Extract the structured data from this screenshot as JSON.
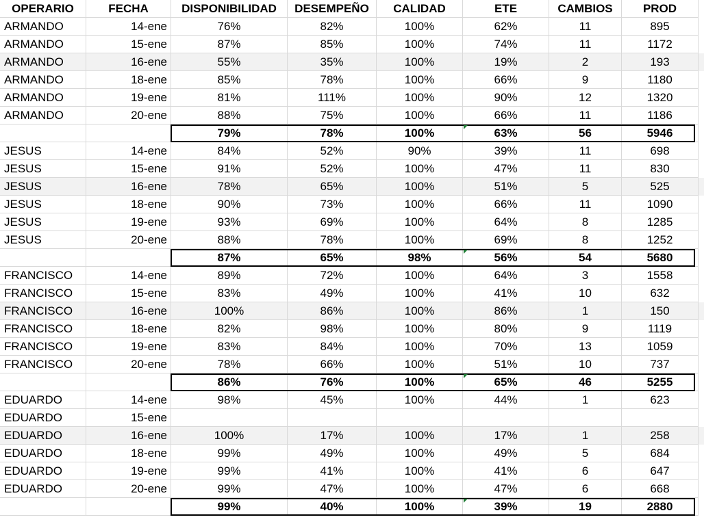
{
  "columns": [
    "OPERARIO",
    "FECHA",
    "DISPONIBILIDAD",
    "DESEMPEÑO",
    "CALIDAD",
    "ETE",
    "CAMBIOS",
    "PROD"
  ],
  "rows": [
    {
      "type": "data",
      "cells": [
        "ARMANDO",
        "14-ene",
        "76%",
        "82%",
        "100%",
        "62%",
        "11",
        "895"
      ]
    },
    {
      "type": "data",
      "cells": [
        "ARMANDO",
        "15-ene",
        "87%",
        "85%",
        "100%",
        "74%",
        "11",
        "1172"
      ]
    },
    {
      "type": "data",
      "shaded": true,
      "cells": [
        "ARMANDO",
        "16-ene",
        "55%",
        "35%",
        "100%",
        "19%",
        "2",
        "193"
      ]
    },
    {
      "type": "data",
      "cells": [
        "ARMANDO",
        "18-ene",
        "85%",
        "78%",
        "100%",
        "66%",
        "9",
        "1180"
      ]
    },
    {
      "type": "data",
      "cells": [
        "ARMANDO",
        "19-ene",
        "81%",
        "111%",
        "100%",
        "90%",
        "12",
        "1320"
      ]
    },
    {
      "type": "data",
      "cells": [
        "ARMANDO",
        "20-ene",
        "88%",
        "75%",
        "100%",
        "66%",
        "11",
        "1186"
      ]
    },
    {
      "type": "total",
      "cells": [
        "",
        "",
        "79%",
        "78%",
        "100%",
        "63%",
        "56",
        "5946"
      ]
    },
    {
      "type": "data",
      "cells": [
        "JESUS",
        "14-ene",
        "84%",
        "52%",
        "90%",
        "39%",
        "11",
        "698"
      ]
    },
    {
      "type": "data",
      "cells": [
        "JESUS",
        "15-ene",
        "91%",
        "52%",
        "100%",
        "47%",
        "11",
        "830"
      ]
    },
    {
      "type": "data",
      "shaded": true,
      "cells": [
        "JESUS",
        "16-ene",
        "78%",
        "65%",
        "100%",
        "51%",
        "5",
        "525"
      ]
    },
    {
      "type": "data",
      "cells": [
        "JESUS",
        "18-ene",
        "90%",
        "73%",
        "100%",
        "66%",
        "11",
        "1090"
      ]
    },
    {
      "type": "data",
      "cells": [
        "JESUS",
        "19-ene",
        "93%",
        "69%",
        "100%",
        "64%",
        "8",
        "1285"
      ]
    },
    {
      "type": "data",
      "cells": [
        "JESUS",
        "20-ene",
        "88%",
        "78%",
        "100%",
        "69%",
        "8",
        "1252"
      ]
    },
    {
      "type": "total",
      "cells": [
        "",
        "",
        "87%",
        "65%",
        "98%",
        "56%",
        "54",
        "5680"
      ]
    },
    {
      "type": "data",
      "cells": [
        "FRANCISCO",
        "14-ene",
        "89%",
        "72%",
        "100%",
        "64%",
        "3",
        "1558"
      ]
    },
    {
      "type": "data",
      "cells": [
        "FRANCISCO",
        "15-ene",
        "83%",
        "49%",
        "100%",
        "41%",
        "10",
        "632"
      ]
    },
    {
      "type": "data",
      "shaded": true,
      "cells": [
        "FRANCISCO",
        "16-ene",
        "100%",
        "86%",
        "100%",
        "86%",
        "1",
        "150"
      ]
    },
    {
      "type": "data",
      "cells": [
        "FRANCISCO",
        "18-ene",
        "82%",
        "98%",
        "100%",
        "80%",
        "9",
        "1119"
      ]
    },
    {
      "type": "data",
      "cells": [
        "FRANCISCO",
        "19-ene",
        "83%",
        "84%",
        "100%",
        "70%",
        "13",
        "1059"
      ]
    },
    {
      "type": "data",
      "cells": [
        "FRANCISCO",
        "20-ene",
        "78%",
        "66%",
        "100%",
        "51%",
        "10",
        "737"
      ]
    },
    {
      "type": "total",
      "cells": [
        "",
        "",
        "86%",
        "76%",
        "100%",
        "65%",
        "46",
        "5255"
      ]
    },
    {
      "type": "data",
      "cells": [
        "EDUARDO",
        "14-ene",
        "98%",
        "45%",
        "100%",
        "44%",
        "1",
        "623"
      ]
    },
    {
      "type": "data",
      "cells": [
        "EDUARDO",
        "15-ene",
        "",
        "",
        "",
        "",
        "",
        ""
      ]
    },
    {
      "type": "data",
      "shaded": true,
      "cells": [
        "EDUARDO",
        "16-ene",
        "100%",
        "17%",
        "100%",
        "17%",
        "1",
        "258"
      ]
    },
    {
      "type": "data",
      "cells": [
        "EDUARDO",
        "18-ene",
        "99%",
        "49%",
        "100%",
        "49%",
        "5",
        "684"
      ]
    },
    {
      "type": "data",
      "cells": [
        "EDUARDO",
        "19-ene",
        "99%",
        "41%",
        "100%",
        "41%",
        "6",
        "647"
      ]
    },
    {
      "type": "data",
      "cells": [
        "EDUARDO",
        "20-ene",
        "99%",
        "47%",
        "100%",
        "47%",
        "6",
        "668"
      ]
    },
    {
      "type": "total",
      "cells": [
        "",
        "",
        "99%",
        "40%",
        "100%",
        "39%",
        "19",
        "2880"
      ]
    }
  ],
  "colors": {
    "row_shade": "#f2f2f2",
    "gridline": "#d9d9d9",
    "comment_flag": "#1e7b34"
  }
}
